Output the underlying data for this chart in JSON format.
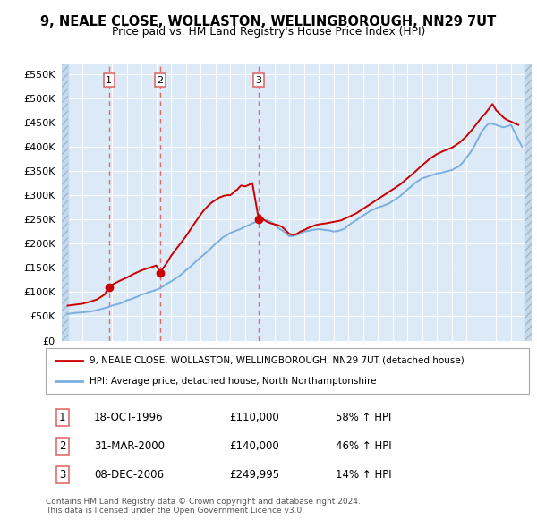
{
  "title": "9, NEALE CLOSE, WOLLASTON, WELLINGBOROUGH, NN29 7UT",
  "subtitle": "Price paid vs. HM Land Registry's House Price Index (HPI)",
  "yticks": [
    0,
    50000,
    100000,
    150000,
    200000,
    250000,
    300000,
    350000,
    400000,
    450000,
    500000,
    550000
  ],
  "ytick_labels": [
    "£0",
    "£50K",
    "£100K",
    "£150K",
    "£200K",
    "£250K",
    "£300K",
    "£350K",
    "£400K",
    "£450K",
    "£500K",
    "£550K"
  ],
  "xmin": 1993.6,
  "xmax": 2025.4,
  "ymin": 0,
  "ymax": 572000,
  "sale_dates": [
    1996.79,
    2000.25,
    2006.93
  ],
  "sale_prices": [
    110000,
    140000,
    249995
  ],
  "sale_labels": [
    "1",
    "2",
    "3"
  ],
  "legend_line1": "9, NEALE CLOSE, WOLLASTON, WELLINGBOROUGH, NN29 7UT (detached house)",
  "legend_line2": "HPI: Average price, detached house, North Northamptonshire",
  "table_rows": [
    [
      "1",
      "18-OCT-1996",
      "£110,000",
      "58% ↑ HPI"
    ],
    [
      "2",
      "31-MAR-2000",
      "£140,000",
      "46% ↑ HPI"
    ],
    [
      "3",
      "08-DEC-2006",
      "£249,995",
      "14% ↑ HPI"
    ]
  ],
  "footnote1": "Contains HM Land Registry data © Crown copyright and database right 2024.",
  "footnote2": "This data is licensed under the Open Government Licence v3.0.",
  "line_color_red": "#cc0000",
  "line_color_blue": "#7aafe0",
  "background_plot": "#dce9f7",
  "background_hatch_color": "#c5d9ec",
  "grid_color": "#ffffff",
  "dashed_line_color": "#e06060",
  "hpi_years": [
    1994.0,
    1994.25,
    1994.5,
    1994.75,
    1995.0,
    1995.25,
    1995.5,
    1995.75,
    1996.0,
    1996.25,
    1996.5,
    1996.75,
    1997.0,
    1997.25,
    1997.5,
    1997.75,
    1998.0,
    1998.25,
    1998.5,
    1998.75,
    1999.0,
    1999.25,
    1999.5,
    1999.75,
    2000.0,
    2000.25,
    2000.5,
    2000.75,
    2001.0,
    2001.25,
    2001.5,
    2001.75,
    2002.0,
    2002.25,
    2002.5,
    2002.75,
    2003.0,
    2003.25,
    2003.5,
    2003.75,
    2004.0,
    2004.25,
    2004.5,
    2004.75,
    2005.0,
    2005.25,
    2005.5,
    2005.75,
    2006.0,
    2006.25,
    2006.5,
    2006.75,
    2007.0,
    2007.25,
    2007.5,
    2007.75,
    2008.0,
    2008.25,
    2008.5,
    2008.75,
    2009.0,
    2009.25,
    2009.5,
    2009.75,
    2010.0,
    2010.25,
    2010.5,
    2010.75,
    2011.0,
    2011.25,
    2011.5,
    2011.75,
    2012.0,
    2012.25,
    2012.5,
    2012.75,
    2013.0,
    2013.25,
    2013.5,
    2013.75,
    2014.0,
    2014.25,
    2014.5,
    2014.75,
    2015.0,
    2015.25,
    2015.5,
    2015.75,
    2016.0,
    2016.25,
    2016.5,
    2016.75,
    2017.0,
    2017.25,
    2017.5,
    2017.75,
    2018.0,
    2018.25,
    2018.5,
    2018.75,
    2019.0,
    2019.25,
    2019.5,
    2019.75,
    2020.0,
    2020.25,
    2020.5,
    2020.75,
    2021.0,
    2021.25,
    2021.5,
    2021.75,
    2022.0,
    2022.25,
    2022.5,
    2022.75,
    2023.0,
    2023.25,
    2023.5,
    2023.75,
    2024.0,
    2024.25,
    2024.5,
    2024.75
  ],
  "hpi_values": [
    55000,
    56000,
    57000,
    57500,
    58000,
    59000,
    60000,
    61000,
    63000,
    65000,
    67000,
    69000,
    72000,
    74000,
    76000,
    79000,
    83000,
    85000,
    88000,
    91000,
    95000,
    97000,
    100000,
    102000,
    105000,
    108000,
    113000,
    118000,
    122000,
    127000,
    132000,
    138000,
    145000,
    151000,
    158000,
    165000,
    172000,
    178000,
    185000,
    192000,
    200000,
    206000,
    213000,
    217000,
    222000,
    225000,
    228000,
    231000,
    235000,
    238000,
    242000,
    245000,
    248000,
    248000,
    248000,
    245000,
    240000,
    232000,
    228000,
    222000,
    215000,
    216000,
    218000,
    221000,
    225000,
    226000,
    228000,
    229000,
    230000,
    229000,
    228000,
    227000,
    225000,
    226000,
    228000,
    231000,
    238000,
    243000,
    248000,
    253000,
    258000,
    263000,
    268000,
    271000,
    275000,
    277000,
    280000,
    283000,
    288000,
    293000,
    298000,
    305000,
    312000,
    318000,
    325000,
    330000,
    335000,
    337000,
    340000,
    342000,
    345000,
    346000,
    348000,
    350000,
    352000,
    356000,
    360000,
    368000,
    378000,
    388000,
    400000,
    415000,
    430000,
    440000,
    448000,
    447000,
    445000,
    442000,
    440000,
    442000,
    445000,
    430000,
    415000,
    400000
  ],
  "price_years": [
    1994.0,
    1994.5,
    1995.0,
    1995.5,
    1996.0,
    1996.5,
    1996.79,
    1997.0,
    1997.5,
    1998.0,
    1998.5,
    1999.0,
    1999.5,
    2000.0,
    2000.25,
    2000.75,
    2001.0,
    2001.5,
    2002.0,
    2002.5,
    2003.0,
    2003.25,
    2003.5,
    2003.75,
    2004.0,
    2004.25,
    2004.5,
    2004.75,
    2005.0,
    2005.1,
    2005.2,
    2005.3,
    2005.4,
    2005.5,
    2005.6,
    2005.75,
    2006.0,
    2006.25,
    2006.5,
    2006.93,
    2007.0,
    2007.1,
    2007.25,
    2007.5,
    2007.75,
    2008.0,
    2008.25,
    2008.5,
    2009.0,
    2009.25,
    2009.5,
    2009.75,
    2010.0,
    2010.25,
    2010.5,
    2010.75,
    2011.0,
    2011.5,
    2012.0,
    2012.5,
    2013.0,
    2013.5,
    2014.0,
    2014.5,
    2015.0,
    2015.5,
    2016.0,
    2016.5,
    2017.0,
    2017.5,
    2018.0,
    2018.5,
    2019.0,
    2019.5,
    2020.0,
    2020.5,
    2021.0,
    2021.5,
    2022.0,
    2022.25,
    2022.5,
    2022.75,
    2023.0,
    2023.25,
    2023.5,
    2023.75,
    2024.0,
    2024.25,
    2024.5
  ],
  "price_values": [
    72000,
    74000,
    76000,
    80000,
    85000,
    95000,
    110000,
    115000,
    123000,
    130000,
    138000,
    145000,
    150000,
    155000,
    140000,
    162000,
    175000,
    195000,
    215000,
    238000,
    260000,
    270000,
    278000,
    285000,
    290000,
    295000,
    298000,
    300000,
    300000,
    302000,
    305000,
    308000,
    310000,
    312000,
    316000,
    320000,
    318000,
    321000,
    325000,
    249995,
    260000,
    255000,
    250000,
    245000,
    242000,
    240000,
    238000,
    235000,
    220000,
    218000,
    220000,
    225000,
    228000,
    232000,
    235000,
    238000,
    240000,
    242000,
    245000,
    248000,
    255000,
    262000,
    272000,
    282000,
    292000,
    302000,
    312000,
    322000,
    335000,
    348000,
    362000,
    375000,
    385000,
    392000,
    398000,
    408000,
    422000,
    440000,
    460000,
    468000,
    478000,
    488000,
    475000,
    468000,
    460000,
    455000,
    452000,
    448000,
    445000
  ]
}
